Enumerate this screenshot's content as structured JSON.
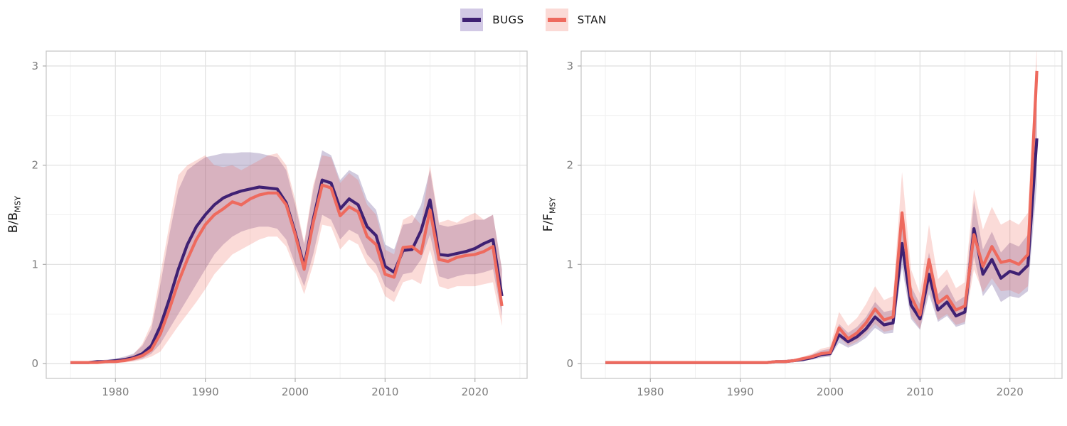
{
  "legend": {
    "items": [
      {
        "label": "BUGS",
        "line_color": "#3f2173",
        "fill_color": "#d2c9e5"
      },
      {
        "label": "STAN",
        "line_color": "#ee6a5e",
        "fill_color": "#fbdad6"
      }
    ]
  },
  "colors": {
    "background": "#ffffff",
    "panel_border": "#c8c8c8",
    "grid_major": "#e2e2e2",
    "grid_minor": "#f1f1f1",
    "tick_mark": "#adadad",
    "tick_label": "#7e7e7e",
    "axis_title": "#121212",
    "ribbon_opacity": 0.24
  },
  "chart_data": [
    {
      "type": "line",
      "panel": "left",
      "ylabel_main": "B/B",
      "ylabel_sub": "MSY",
      "x_ticks": [
        1980,
        1990,
        2000,
        2010,
        2020
      ],
      "y_ticks": [
        0,
        1,
        2,
        3
      ],
      "xlim": [
        1972.3,
        2025.8
      ],
      "ylim": [
        -0.15,
        3.15
      ],
      "grid": true,
      "legend_position": "top-center",
      "x": [
        1975,
        1976,
        1977,
        1978,
        1979,
        1980,
        1981,
        1982,
        1983,
        1984,
        1985,
        1986,
        1987,
        1988,
        1989,
        1990,
        1991,
        1992,
        1993,
        1994,
        1995,
        1996,
        1997,
        1998,
        1999,
        2000,
        2001,
        2002,
        2003,
        2004,
        2005,
        2006,
        2007,
        2008,
        2009,
        2010,
        2011,
        2012,
        2013,
        2014,
        2015,
        2016,
        2017,
        2018,
        2019,
        2020,
        2021,
        2022,
        2023
      ],
      "series": [
        {
          "name": "BUGS",
          "color": "#3f2173",
          "values": [
            0.01,
            0.01,
            0.01,
            0.02,
            0.02,
            0.03,
            0.04,
            0.06,
            0.1,
            0.18,
            0.38,
            0.65,
            0.95,
            1.2,
            1.38,
            1.5,
            1.6,
            1.67,
            1.71,
            1.74,
            1.76,
            1.78,
            1.77,
            1.76,
            1.62,
            1.32,
            0.98,
            1.45,
            1.85,
            1.82,
            1.56,
            1.66,
            1.6,
            1.38,
            1.29,
            0.98,
            0.92,
            1.14,
            1.15,
            1.34,
            1.65,
            1.1,
            1.09,
            1.11,
            1.13,
            1.16,
            1.21,
            1.25,
            0.68
          ],
          "low": [
            0.0,
            0.0,
            0.0,
            0.01,
            0.01,
            0.01,
            0.02,
            0.03,
            0.05,
            0.1,
            0.2,
            0.35,
            0.5,
            0.65,
            0.8,
            0.95,
            1.1,
            1.2,
            1.28,
            1.33,
            1.36,
            1.38,
            1.38,
            1.36,
            1.25,
            1.0,
            0.78,
            1.1,
            1.5,
            1.45,
            1.25,
            1.35,
            1.3,
            1.1,
            1.0,
            0.78,
            0.72,
            0.9,
            0.92,
            1.05,
            1.3,
            0.88,
            0.85,
            0.88,
            0.9,
            0.9,
            0.92,
            0.95,
            0.48
          ],
          "high": [
            0.02,
            0.02,
            0.02,
            0.03,
            0.04,
            0.05,
            0.07,
            0.1,
            0.18,
            0.35,
            0.8,
            1.3,
            1.75,
            1.95,
            2.02,
            2.08,
            2.1,
            2.12,
            2.12,
            2.13,
            2.13,
            2.12,
            2.1,
            2.08,
            1.95,
            1.6,
            1.2,
            1.75,
            2.15,
            2.1,
            1.85,
            1.95,
            1.9,
            1.65,
            1.55,
            1.2,
            1.15,
            1.4,
            1.42,
            1.6,
            1.95,
            1.4,
            1.38,
            1.4,
            1.42,
            1.45,
            1.45,
            1.5,
            0.95
          ]
        },
        {
          "name": "STAN",
          "color": "#ee6a5e",
          "values": [
            0.01,
            0.01,
            0.01,
            0.01,
            0.02,
            0.02,
            0.03,
            0.05,
            0.08,
            0.14,
            0.3,
            0.55,
            0.82,
            1.05,
            1.25,
            1.4,
            1.5,
            1.56,
            1.63,
            1.6,
            1.66,
            1.7,
            1.72,
            1.72,
            1.6,
            1.3,
            0.95,
            1.42,
            1.8,
            1.77,
            1.49,
            1.58,
            1.53,
            1.28,
            1.2,
            0.9,
            0.87,
            1.17,
            1.18,
            1.11,
            1.55,
            1.05,
            1.03,
            1.07,
            1.09,
            1.1,
            1.13,
            1.18,
            0.58
          ],
          "low": [
            0.0,
            0.0,
            0.0,
            0.0,
            0.01,
            0.01,
            0.01,
            0.02,
            0.04,
            0.07,
            0.12,
            0.25,
            0.38,
            0.5,
            0.62,
            0.75,
            0.9,
            1.0,
            1.1,
            1.15,
            1.2,
            1.25,
            1.28,
            1.28,
            1.18,
            0.95,
            0.7,
            1.0,
            1.4,
            1.38,
            1.15,
            1.25,
            1.2,
            1.0,
            0.9,
            0.68,
            0.62,
            0.82,
            0.85,
            0.8,
            1.15,
            0.78,
            0.75,
            0.78,
            0.78,
            0.78,
            0.8,
            0.82,
            0.38
          ],
          "high": [
            0.02,
            0.02,
            0.02,
            0.02,
            0.03,
            0.04,
            0.06,
            0.09,
            0.2,
            0.4,
            0.9,
            1.4,
            1.9,
            2.0,
            2.05,
            2.1,
            2.0,
            1.98,
            2.0,
            1.95,
            2.0,
            2.05,
            2.1,
            2.12,
            2.0,
            1.65,
            1.22,
            1.8,
            2.1,
            2.08,
            1.82,
            1.92,
            1.85,
            1.6,
            1.5,
            1.15,
            1.1,
            1.45,
            1.5,
            1.4,
            2.0,
            1.42,
            1.45,
            1.42,
            1.48,
            1.52,
            1.45,
            1.5,
            0.95
          ]
        }
      ]
    },
    {
      "type": "line",
      "panel": "right",
      "ylabel_main": "F/F",
      "ylabel_sub": "MSY",
      "x_ticks": [
        1980,
        1990,
        2000,
        2010,
        2020
      ],
      "y_ticks": [
        0,
        1,
        2,
        3
      ],
      "xlim": [
        1972.3,
        2025.8
      ],
      "ylim": [
        -0.15,
        3.15
      ],
      "grid": true,
      "legend_position": "top-center",
      "x": [
        1975,
        1976,
        1977,
        1978,
        1979,
        1980,
        1981,
        1982,
        1983,
        1984,
        1985,
        1986,
        1987,
        1988,
        1989,
        1990,
        1991,
        1992,
        1993,
        1994,
        1995,
        1996,
        1997,
        1998,
        1999,
        2000,
        2001,
        2002,
        2003,
        2004,
        2005,
        2006,
        2007,
        2008,
        2009,
        2010,
        2011,
        2012,
        2013,
        2014,
        2015,
        2016,
        2017,
        2018,
        2019,
        2020,
        2021,
        2022,
        2023
      ],
      "series": [
        {
          "name": "BUGS",
          "color": "#3f2173",
          "values": [
            0.01,
            0.01,
            0.01,
            0.01,
            0.01,
            0.01,
            0.01,
            0.01,
            0.01,
            0.01,
            0.01,
            0.01,
            0.01,
            0.01,
            0.01,
            0.01,
            0.01,
            0.01,
            0.01,
            0.02,
            0.02,
            0.03,
            0.04,
            0.06,
            0.09,
            0.1,
            0.29,
            0.22,
            0.27,
            0.35,
            0.47,
            0.39,
            0.41,
            1.21,
            0.59,
            0.45,
            0.9,
            0.54,
            0.62,
            0.48,
            0.52,
            1.36,
            0.9,
            1.05,
            0.86,
            0.93,
            0.9,
            0.99,
            2.27
          ],
          "low": [
            0.0,
            0.0,
            0.0,
            0.0,
            0.0,
            0.0,
            0.0,
            0.0,
            0.0,
            0.0,
            0.0,
            0.0,
            0.0,
            0.0,
            0.0,
            0.0,
            0.0,
            0.0,
            0.0,
            0.01,
            0.01,
            0.02,
            0.03,
            0.04,
            0.06,
            0.07,
            0.21,
            0.16,
            0.2,
            0.26,
            0.36,
            0.3,
            0.31,
            0.97,
            0.45,
            0.34,
            0.7,
            0.42,
            0.48,
            0.37,
            0.4,
            1.08,
            0.68,
            0.8,
            0.62,
            0.68,
            0.66,
            0.73,
            1.8
          ],
          "high": [
            0.02,
            0.02,
            0.02,
            0.02,
            0.02,
            0.02,
            0.02,
            0.02,
            0.02,
            0.02,
            0.02,
            0.02,
            0.02,
            0.02,
            0.02,
            0.02,
            0.02,
            0.02,
            0.02,
            0.03,
            0.03,
            0.04,
            0.06,
            0.09,
            0.13,
            0.15,
            0.4,
            0.31,
            0.37,
            0.47,
            0.62,
            0.52,
            0.54,
            1.5,
            0.78,
            0.6,
            1.12,
            0.7,
            0.8,
            0.62,
            0.68,
            1.64,
            1.15,
            1.33,
            1.12,
            1.22,
            1.18,
            1.3,
            2.62
          ]
        },
        {
          "name": "STAN",
          "color": "#ee6a5e",
          "values": [
            0.01,
            0.01,
            0.01,
            0.01,
            0.01,
            0.01,
            0.01,
            0.01,
            0.01,
            0.01,
            0.01,
            0.01,
            0.01,
            0.01,
            0.01,
            0.01,
            0.01,
            0.01,
            0.01,
            0.02,
            0.02,
            0.03,
            0.05,
            0.07,
            0.1,
            0.11,
            0.36,
            0.25,
            0.31,
            0.41,
            0.55,
            0.44,
            0.47,
            1.52,
            0.68,
            0.49,
            1.05,
            0.61,
            0.68,
            0.54,
            0.58,
            1.3,
            0.98,
            1.18,
            1.02,
            1.04,
            1.0,
            1.1,
            2.95
          ],
          "low": [
            0.0,
            0.0,
            0.0,
            0.0,
            0.0,
            0.0,
            0.0,
            0.0,
            0.0,
            0.0,
            0.0,
            0.0,
            0.0,
            0.0,
            0.0,
            0.0,
            0.0,
            0.0,
            0.0,
            0.01,
            0.01,
            0.02,
            0.03,
            0.05,
            0.07,
            0.08,
            0.26,
            0.18,
            0.22,
            0.3,
            0.4,
            0.32,
            0.34,
            1.1,
            0.48,
            0.35,
            0.76,
            0.44,
            0.5,
            0.39,
            0.42,
            0.95,
            0.72,
            0.86,
            0.73,
            0.74,
            0.7,
            0.78,
            2.2
          ],
          "high": [
            0.02,
            0.02,
            0.02,
            0.02,
            0.02,
            0.02,
            0.02,
            0.02,
            0.02,
            0.02,
            0.02,
            0.02,
            0.02,
            0.02,
            0.02,
            0.02,
            0.02,
            0.02,
            0.02,
            0.03,
            0.04,
            0.05,
            0.07,
            0.1,
            0.15,
            0.17,
            0.52,
            0.38,
            0.46,
            0.6,
            0.78,
            0.64,
            0.68,
            1.93,
            0.95,
            0.7,
            1.4,
            0.85,
            0.95,
            0.76,
            0.82,
            1.76,
            1.35,
            1.58,
            1.4,
            1.45,
            1.4,
            1.52,
            3.2
          ]
        }
      ]
    }
  ]
}
